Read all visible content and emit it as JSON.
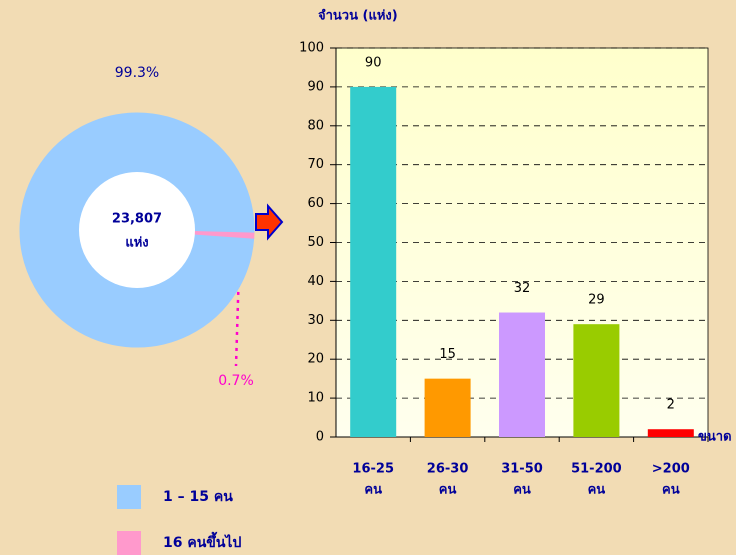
{
  "chart_data": [
    {
      "type": "pie",
      "series": [
        {
          "name": "1 – 15 คน",
          "color": "#99ccff",
          "values": [
            99.3
          ],
          "value_labels": [
            "99.3%"
          ]
        },
        {
          "name": "16 คนขึ้นไป",
          "color": "#ff99cc",
          "values": [
            0.7
          ],
          "value_labels": [
            "0.7%"
          ]
        }
      ],
      "center_text": [
        "23,807",
        "แห่ง"
      ]
    },
    {
      "type": "bar",
      "y_label": "จำนวน (แห่ง)",
      "x_label": "ขนาด",
      "categories": [
        [
          "16-25",
          "คน"
        ],
        [
          "26-30",
          "คน"
        ],
        [
          "31-50",
          "คน"
        ],
        [
          "51-200",
          "คน"
        ],
        [
          ">200",
          "คน"
        ]
      ],
      "values": [
        90,
        15,
        32,
        29,
        2
      ],
      "colors": [
        "#33cccc",
        "#ff9900",
        "#cc99ff",
        "#99cc00",
        "#ff0000"
      ],
      "ylim": [
        0,
        100
      ],
      "yticks": [
        0,
        10,
        20,
        30,
        40,
        50,
        60,
        70,
        80,
        90,
        100
      ],
      "grid": true
    }
  ]
}
